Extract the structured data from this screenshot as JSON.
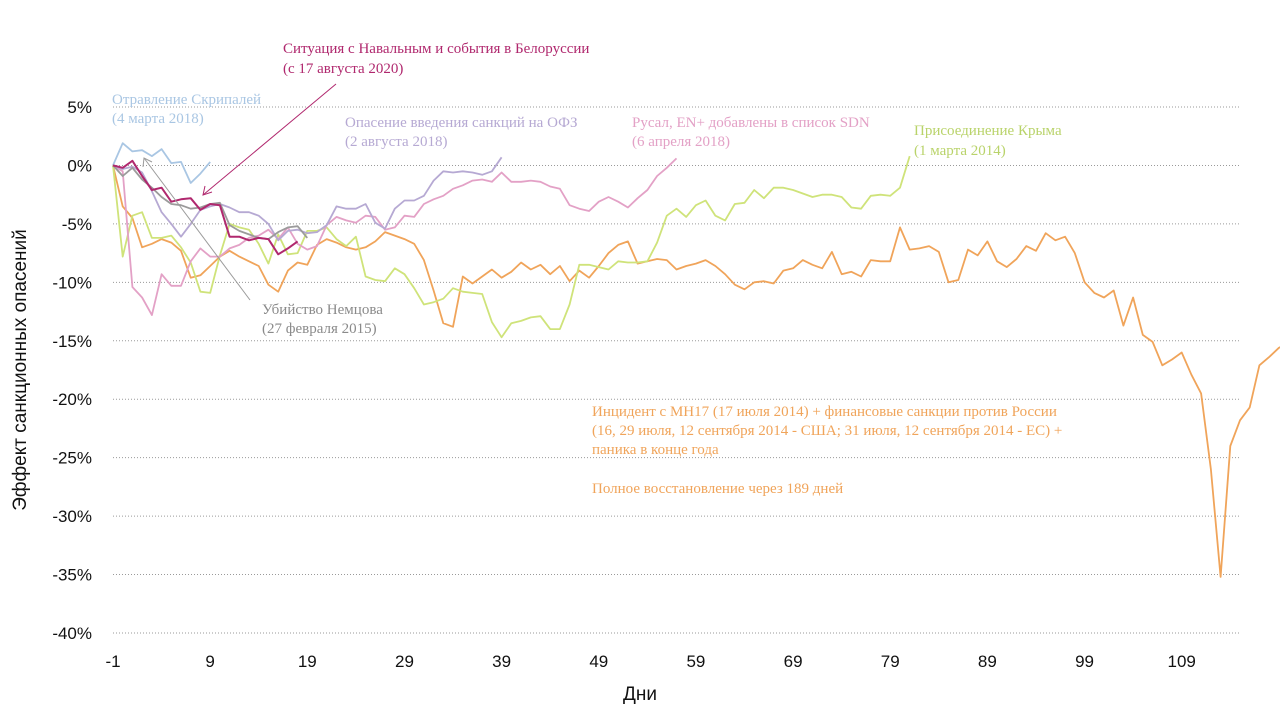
{
  "chart_data": {
    "type": "line",
    "xlabel": "Дни",
    "ylabel": "Эффект санкционных опасений",
    "xlim": [
      -1,
      115
    ],
    "ylim": [
      -40,
      5
    ],
    "x_ticks": [
      -1,
      9,
      19,
      29,
      39,
      49,
      59,
      69,
      79,
      89,
      99,
      109
    ],
    "y_ticks": [
      5,
      0,
      -5,
      -10,
      -15,
      -20,
      -25,
      -30,
      -35,
      -40
    ],
    "y_tick_labels": [
      "5%",
      "0%",
      "-5%",
      "-10%",
      "-15%",
      "-20%",
      "-25%",
      "-30%",
      "-35%",
      "-40%"
    ],
    "grid": "horizontal-dotted",
    "colors": {
      "skripal": "#a9c6e3",
      "navalny": "#b0286e",
      "ofz": "#b6a9d3",
      "rusal": "#e3a1c6",
      "crimea": "#cfe37a",
      "mh17": "#f0a45a",
      "nemtsov": "#9b9b9b"
    },
    "series": [
      {
        "key": "mh17",
        "x0": -1,
        "values": [
          0,
          -3.5,
          -4.5,
          -7,
          -6.7,
          -6.3,
          -6.6,
          -7.3,
          -9.6,
          -9.4,
          -8.6,
          -7.8,
          -7.3,
          -7.8,
          -8.2,
          -8.6,
          -10.2,
          -10.8,
          -9,
          -8.3,
          -8.5,
          -6.8,
          -6.3,
          -6.6,
          -7,
          -7.2,
          -7,
          -6.5,
          -5.7,
          -6,
          -6.3,
          -6.7,
          -8.1,
          -10.7,
          -13.5,
          -13.8,
          -9.5,
          -10.1,
          -9.5,
          -8.9,
          -9.6,
          -9.1,
          -8.3,
          -8.9,
          -8.5,
          -9.3,
          -8.6,
          -9.9,
          -9,
          -9.6,
          -8.6,
          -7.5,
          -6.8,
          -6.5,
          -8.4,
          -8.2,
          -8,
          -8.1,
          -8.9,
          -8.6,
          -8.4,
          -8.1,
          -8.6,
          -9.3,
          -10.2,
          -10.6,
          -10,
          -9.9,
          -10.1,
          -9,
          -8.8,
          -8.1,
          -8.5,
          -8.8,
          -7.4,
          -9.3,
          -9.1,
          -9.5,
          -8.1,
          -8.2,
          -8.2,
          -5.3,
          -7.2,
          -7.1,
          -6.9,
          -7.4,
          -10,
          -9.8,
          -7.2,
          -7.7,
          -6.5,
          -8.2,
          -8.7,
          -8,
          -6.9,
          -7.3,
          -5.8,
          -6.4,
          -6.1,
          -7.5,
          -10,
          -10.9,
          -11.3,
          -10.7,
          -13.7,
          -11.3,
          -14.5,
          -15.1,
          -17.1,
          -16.6,
          -16,
          -17.9,
          -19.5,
          -26,
          -35.2,
          -24,
          -21.8,
          -20.7,
          -17.1,
          -16.4,
          -15.6,
          -15.2,
          -14.1
        ]
      },
      {
        "key": "crimea",
        "x0": -1,
        "values": [
          0,
          -7.8,
          -4.3,
          -4,
          -6.2,
          -6.2,
          -6,
          -7,
          -8.3,
          -10.8,
          -10.9,
          -7.7,
          -5,
          -5.3,
          -5.5,
          -6.7,
          -8.4,
          -5.9,
          -7.6,
          -7.5,
          -5.6,
          -5.6,
          -5.3,
          -6.3,
          -6.9,
          -6.1,
          -9.5,
          -9.8,
          -9.9,
          -8.8,
          -9.3,
          -10.5,
          -11.9,
          -11.7,
          -11.4,
          -10.5,
          -10.8,
          -10.9,
          -11,
          -13.4,
          -14.7,
          -13.5,
          -13.3,
          -13,
          -12.9,
          -14,
          -14,
          -11.9,
          -8.5,
          -8.5,
          -8.7,
          -8.9,
          -8.2,
          -8.3,
          -8.3,
          -8.2,
          -6.6,
          -4.3,
          -3.7,
          -4.4,
          -3.4,
          -3,
          -4.3,
          -4.7,
          -3.3,
          -3.2,
          -2.1,
          -2.8,
          -1.9,
          -1.9,
          -2.1,
          -2.4,
          -2.7,
          -2.5,
          -2.5,
          -2.7,
          -3.6,
          -3.7,
          -2.6,
          -2.5,
          -2.6,
          -1.9,
          0.8
        ]
      },
      {
        "key": "rusal",
        "x0": -1,
        "values": [
          0,
          -0.5,
          -10.4,
          -11.3,
          -12.8,
          -9.3,
          -10.3,
          -10.3,
          -8.2,
          -7.1,
          -7.8,
          -7.8,
          -7.1,
          -6.8,
          -6.2,
          -6,
          -5.5,
          -6.3,
          -5.3,
          -6.7,
          -7.2,
          -6.9,
          -5.1,
          -4.4,
          -4.7,
          -4.9,
          -4.3,
          -4.4,
          -5.5,
          -5.3,
          -4.3,
          -4.4,
          -3.3,
          -2.9,
          -2.6,
          -2,
          -1.7,
          -1.3,
          -1.2,
          -1.4,
          -0.6,
          -1.4,
          -1.4,
          -1.3,
          -1.4,
          -1.8,
          -2,
          -3.4,
          -3.7,
          -3.9,
          -3.1,
          -2.7,
          -3.1,
          -3.6,
          -2.8,
          -2.1,
          -0.9,
          -0.2,
          0.6
        ]
      },
      {
        "key": "ofz",
        "x0": -1,
        "values": [
          0,
          -0.3,
          -0.1,
          -0.6,
          -2.2,
          -4,
          -5,
          -6.1,
          -5,
          -3.8,
          -3.5,
          -3.3,
          -3.6,
          -4,
          -4,
          -4.3,
          -5,
          -6.4,
          -5.6,
          -5.5,
          -5.8,
          -5.7,
          -5.1,
          -3.5,
          -3.7,
          -3.7,
          -3.3,
          -4.9,
          -5.4,
          -3.7,
          -3,
          -3,
          -2.6,
          -1.3,
          -0.5,
          -0.6,
          -0.5,
          -0.6,
          -0.8,
          -0.5,
          0.7
        ]
      },
      {
        "key": "skripal",
        "x0": -1,
        "values": [
          0,
          1.9,
          1.2,
          1.3,
          0.8,
          1.4,
          0.2,
          0.3,
          -1.5,
          -0.7,
          0.3
        ]
      },
      {
        "key": "nemtsov",
        "x0": -1,
        "values": [
          0,
          -0.9,
          -0.2,
          -1.2,
          -1.9,
          -2.7,
          -3.3,
          -3.4,
          -3.7,
          -3.6,
          -3.3,
          -3.2,
          -5.1,
          -5.6,
          -5.9,
          -6.2,
          -6.3,
          -5.7,
          -5.3,
          -5.2,
          -6.2
        ]
      },
      {
        "key": "navalny",
        "x0": -1,
        "values": [
          0,
          -0.2,
          0.4,
          -0.9,
          -2.1,
          -1.9,
          -3.1,
          -2.9,
          -2.8,
          -3.8,
          -3.3,
          -3.4,
          -6.1,
          -6.1,
          -6.4,
          -6.2,
          -6.3,
          -7.6,
          -7.1,
          -6.5
        ]
      }
    ],
    "annotations": {
      "navalny": {
        "line1": "Ситуация с Навальным и события в Белоруссии",
        "line2": "(с 17 августа 2020)"
      },
      "skripal": {
        "line1": "Отравление Скрипалей",
        "line2": "(4 марта 2018)"
      },
      "ofz": {
        "line1": "Опасение введения санкций на ОФЗ",
        "line2": "(2 августа 2018)"
      },
      "rusal": {
        "line1": "Русал, EN+ добавлены в список SDN",
        "line2": "(6 апреля 2018)"
      },
      "crimea": {
        "line1": "Присоединение Крыма",
        "line2": "(1 марта 2014)"
      },
      "nemtsov": {
        "line1": "Убийство Немцова",
        "line2": "(27 февраля 2015)"
      },
      "mh17": {
        "line1": "Инцидент с МН17 (17 июля 2014) + финансовые санкции против России",
        "line2": "(16, 29 июля, 12 сентября 2014 - США; 31 июля, 12 сентября 2014 - ЕС) +",
        "line3": "паника в конце года",
        "line4": "Полное восстановление через 189 дней"
      }
    }
  }
}
